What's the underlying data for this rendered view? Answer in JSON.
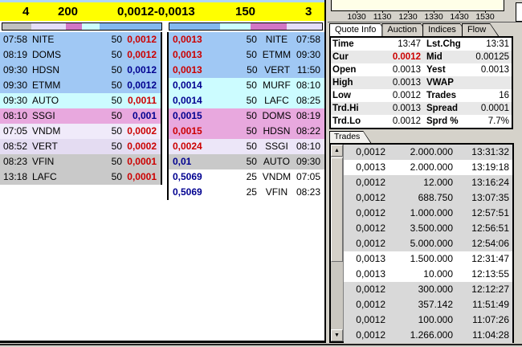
{
  "depth_panel": {
    "header": {
      "bid_mm_count": "4",
      "bid_size": "200",
      "spread": "0,0012-0,0013",
      "ask_size": "150",
      "ask_mm_count": "3"
    },
    "depth_bar_bid": [
      {
        "color": "#c0c0c0",
        "width": "18%"
      },
      {
        "color": "#e4defa",
        "width": "22%"
      },
      {
        "color": "#d276c6",
        "width": "10%"
      },
      {
        "color": "#ccfcff",
        "width": "11%"
      },
      {
        "color": "#84b8f0",
        "width": "39%"
      }
    ],
    "depth_bar_ask": [
      {
        "color": "#84b8f0",
        "width": "33%"
      },
      {
        "color": "#ccfcff",
        "width": "20%"
      },
      {
        "color": "#d276c6",
        "width": "24%"
      },
      {
        "color": "#e4defa",
        "width": "23%"
      }
    ],
    "bid_rows": [
      {
        "time": "07:58",
        "mm": "NITE",
        "size": "50",
        "price": "0,0012",
        "price_color": "#cc0000",
        "bg": "#a0c8f4"
      },
      {
        "time": "08:19",
        "mm": "DOMS",
        "size": "50",
        "price": "0,0012",
        "price_color": "#cc0000",
        "bg": "#a0c8f4"
      },
      {
        "time": "09:30",
        "mm": "HDSN",
        "size": "50",
        "price": "0,0012",
        "price_color": "#000090",
        "bg": "#a0c8f4"
      },
      {
        "time": "09:30",
        "mm": "ETMM",
        "size": "50",
        "price": "0,0012",
        "price_color": "#000090",
        "bg": "#a0c8f4"
      },
      {
        "time": "09:30",
        "mm": "AUTO",
        "size": "50",
        "price": "0,0011",
        "price_color": "#cc0000",
        "bg": "#ccfcff"
      },
      {
        "time": "08:10",
        "mm": "SSGI",
        "size": "50",
        "price": "0,001",
        "price_color": "#000090",
        "bg": "#e8a8de"
      },
      {
        "time": "07:05",
        "mm": "VNDM",
        "size": "50",
        "price": "0,0002",
        "price_color": "#cc0000",
        "bg": "#f0eafa"
      },
      {
        "time": "08:52",
        "mm": "VERT",
        "size": "50",
        "price": "0,0002",
        "price_color": "#cc0000",
        "bg": "#e4dcf2"
      },
      {
        "time": "08:23",
        "mm": "VFIN",
        "size": "50",
        "price": "0,0001",
        "price_color": "#cc0000",
        "bg": "#c9c9c9"
      },
      {
        "time": "13:18",
        "mm": "LAFC",
        "size": "50",
        "price": "0,0001",
        "price_color": "#cc0000",
        "bg": "#c9c9c9"
      }
    ],
    "ask_rows": [
      {
        "price": "0,0013",
        "size": "50",
        "mm": "NITE",
        "time": "07:58",
        "price_color": "#cc0000",
        "bg": "#a0c8f4"
      },
      {
        "price": "0,0013",
        "size": "50",
        "mm": "ETMM",
        "time": "09:30",
        "price_color": "#cc0000",
        "bg": "#a0c8f4"
      },
      {
        "price": "0,0013",
        "size": "50",
        "mm": "VERT",
        "time": "11:50",
        "price_color": "#cc0000",
        "bg": "#a0c8f4"
      },
      {
        "price": "0,0014",
        "size": "50",
        "mm": "MURF",
        "time": "08:10",
        "price_color": "#000090",
        "bg": "#ccfcff"
      },
      {
        "price": "0,0014",
        "size": "50",
        "mm": "LAFC",
        "time": "08:25",
        "price_color": "#000090",
        "bg": "#ccfcff"
      },
      {
        "price": "0,0015",
        "size": "50",
        "mm": "DOMS",
        "time": "08:19",
        "price_color": "#000090",
        "bg": "#e8a8de"
      },
      {
        "price": "0,0015",
        "size": "50",
        "mm": "HDSN",
        "time": "08:22",
        "price_color": "#cc0000",
        "bg": "#e8a8de"
      },
      {
        "price": "0,0024",
        "size": "50",
        "mm": "SSGI",
        "time": "08:10",
        "price_color": "#cc0000",
        "bg": "#ece6f8"
      },
      {
        "price": "0,01",
        "size": "50",
        "mm": "AUTO",
        "time": "09:30",
        "price_color": "#000090",
        "bg": "#c9c9c9"
      },
      {
        "price": "0,5069",
        "size": "25",
        "mm": "VNDM",
        "time": "07:05",
        "price_color": "#000090",
        "bg": "#ffffff"
      },
      {
        "price": "0,5069",
        "size": "25",
        "mm": "VFIN",
        "time": "08:23",
        "price_color": "#000090",
        "bg": "#ffffff"
      }
    ]
  },
  "quote_panel": {
    "chart_x_ticks": [
      {
        "t": "1030"
      },
      {
        "t": "1130"
      },
      {
        "t": "1230"
      },
      {
        "t": "1330"
      },
      {
        "t": "1430"
      },
      {
        "t": "1530"
      }
    ],
    "tabs": [
      {
        "label": "Quote Info",
        "bg": "#ffffff"
      },
      {
        "label": "Auction",
        "bg": "#d4d0c8"
      },
      {
        "label": "Indices",
        "bg": "#d4d0c8"
      },
      {
        "label": "Flow",
        "bg": "#d4d0c8"
      }
    ],
    "rows": [
      {
        "l_label": "Time",
        "l_value": "13:47",
        "r_label": "Lst.Chg",
        "r_value": "13:31",
        "bg": "#ffffff"
      },
      {
        "l_label": "Cur",
        "l_value": "0.0012",
        "lv_color": "#cc0000",
        "lv_weight": "bold",
        "r_label": "Mid",
        "r_value": "0.00125",
        "bg": "#e8e8e8"
      },
      {
        "l_label": "Open",
        "l_value": "0.0013",
        "r_label": "Yest",
        "r_value": "0.0013",
        "bg": "#ffffff"
      },
      {
        "l_label": "High",
        "l_value": "0.0013",
        "r_label": "VWAP",
        "r_value": "",
        "bg": "#e8e8e8"
      },
      {
        "l_label": "Low",
        "l_value": "0.0012",
        "r_label": "Trades",
        "r_value": "16",
        "bg": "#ffffff"
      },
      {
        "l_label": "Trd.Hi",
        "l_value": "0.0013",
        "r_label": "Spread",
        "r_value": "0.0001",
        "bg": "#e8e8e8"
      },
      {
        "l_label": "Trd.Lo",
        "l_value": "0.0012",
        "r_label": "Sprd %",
        "r_value": "7.7%",
        "bg": "#ffffff"
      }
    ]
  },
  "trades_panel": {
    "tab_label": "Trades",
    "rows": [
      {
        "price": "0,0012",
        "size": "2.000.000",
        "time": "13:31:32",
        "bg": "#d9d9d9"
      },
      {
        "price": "0,0013",
        "size": "2.000.000",
        "time": "13:19:18",
        "bg": "#ffffff"
      },
      {
        "price": "0,0012",
        "size": "12.000",
        "time": "13:16:24",
        "bg": "#d9d9d9"
      },
      {
        "price": "0,0012",
        "size": "688.750",
        "time": "13:07:35",
        "bg": "#d9d9d9"
      },
      {
        "price": "0,0012",
        "size": "1.000.000",
        "time": "12:57:51",
        "bg": "#d9d9d9"
      },
      {
        "price": "0,0012",
        "size": "3.500.000",
        "time": "12:56:51",
        "bg": "#d9d9d9"
      },
      {
        "price": "0,0012",
        "size": "5.000.000",
        "time": "12:54:06",
        "bg": "#d9d9d9"
      },
      {
        "price": "0,0013",
        "size": "1.500.000",
        "time": "12:31:47",
        "bg": "#ffffff"
      },
      {
        "price": "0,0013",
        "size": "10.000",
        "time": "12:13:55",
        "bg": "#ffffff"
      },
      {
        "price": "0,0012",
        "size": "300.000",
        "time": "12:12:27",
        "bg": "#d9d9d9"
      },
      {
        "price": "0,0012",
        "size": "357.142",
        "time": "11:51:49",
        "bg": "#d9d9d9"
      },
      {
        "price": "0,0012",
        "size": "100.000",
        "time": "11:07:26",
        "bg": "#d9d9d9"
      },
      {
        "price": "0,0012",
        "size": "1.266.000",
        "time": "11:04:28",
        "bg": "#d9d9d9"
      }
    ],
    "scroll_up_icon": "▲",
    "scroll_down_icon": "▼"
  },
  "colors": {
    "accent_header": "#ffff00",
    "price_red": "#cc0000",
    "price_navy": "#000090",
    "level_blue": "#a0c8f4",
    "level_cyan": "#ccfcff",
    "level_pink": "#e8a8de",
    "level_lavender": "#e4dcf2",
    "level_gray": "#c9c9c9"
  }
}
